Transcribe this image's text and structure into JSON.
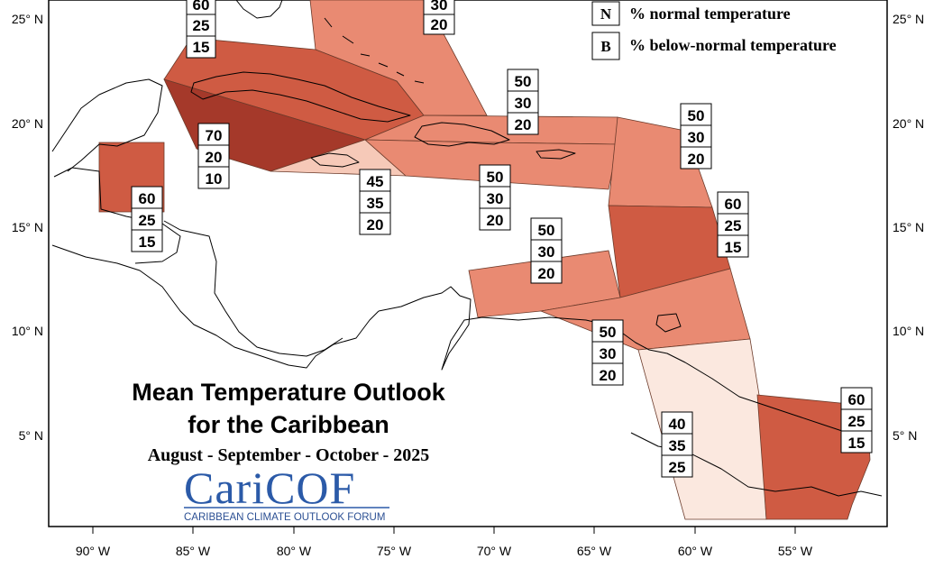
{
  "title_line1": "Mean Temperature Outlook",
  "title_line2": "for the Caribbean",
  "subtitle": "August - September - October - 2025",
  "logo": {
    "name": "CariCOF",
    "tagline": "CARIBBEAN CLIMATE OUTLOOK FORUM"
  },
  "legend": [
    {
      "key": "N",
      "text": "% normal temperature"
    },
    {
      "key": "B",
      "text": "% below-normal temperature"
    }
  ],
  "axes": {
    "x_ticks": [
      "90° W",
      "85° W",
      "80° W",
      "75° W",
      "70° W",
      "65° W",
      "60° W",
      "55° W"
    ],
    "y_ticks": [
      "25° N",
      "20° N",
      "15° N",
      "10° N",
      "5° N"
    ]
  },
  "colors": {
    "a_70": "#a5392a",
    "a_60": "#cf5b43",
    "a_50": "#e98a72",
    "a_45": "#f6c9b8",
    "a_40": "#fbe8df"
  },
  "probabilities": [
    {
      "id": "bahamas-nw",
      "above": "60",
      "normal": "25",
      "below": "15"
    },
    {
      "id": "bahamas-se",
      "above": "",
      "normal": "30",
      "below": "20"
    },
    {
      "id": "cuba",
      "above": "70",
      "normal": "20",
      "below": "10"
    },
    {
      "id": "belize",
      "above": "60",
      "normal": "25",
      "below": "15"
    },
    {
      "id": "jamaica",
      "above": "45",
      "normal": "35",
      "below": "20"
    },
    {
      "id": "hispaniola",
      "above": "50",
      "normal": "30",
      "below": "20"
    },
    {
      "id": "puerto-rico",
      "above": "50",
      "normal": "30",
      "below": "20"
    },
    {
      "id": "leeward-islands",
      "above": "50",
      "normal": "30",
      "below": "20"
    },
    {
      "id": "windward-islands",
      "above": "60",
      "normal": "25",
      "below": "15"
    },
    {
      "id": "abc-islands",
      "above": "50",
      "normal": "30",
      "below": "20"
    },
    {
      "id": "trinidad-tobago",
      "above": "50",
      "normal": "30",
      "below": "20"
    },
    {
      "id": "guyana",
      "above": "40",
      "normal": "35",
      "below": "25"
    },
    {
      "id": "suriname-guiana",
      "above": "60",
      "normal": "25",
      "below": "15"
    }
  ]
}
